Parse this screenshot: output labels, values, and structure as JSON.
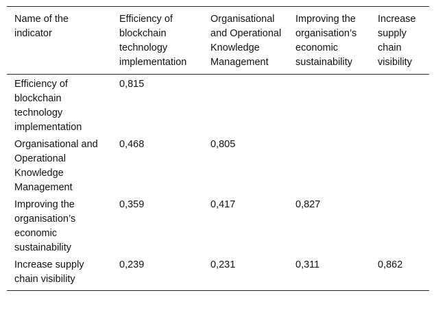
{
  "table": {
    "headers": [
      "Name of the indicator",
      "Efficiency of blockchain technology implementation",
      "Organisational and Operational Knowledge Management",
      "Improving the organisation’s economic sustainability",
      "Increase supply chain visibility"
    ],
    "rows": [
      {
        "name": "Efficiency of blockchain technology implementation",
        "values": [
          "0,815",
          "",
          "",
          ""
        ]
      },
      {
        "name": "Organisational and Operational Knowledge Management",
        "values": [
          "0,468",
          "0,805",
          "",
          ""
        ]
      },
      {
        "name": "Improving the organisation’s economic sustainability",
        "values": [
          "0,359",
          "0,417",
          "0,827",
          ""
        ]
      },
      {
        "name": "Increase supply chain visibility",
        "values": [
          "0,239",
          "0,231",
          "0,311",
          "0,862"
        ]
      }
    ]
  }
}
